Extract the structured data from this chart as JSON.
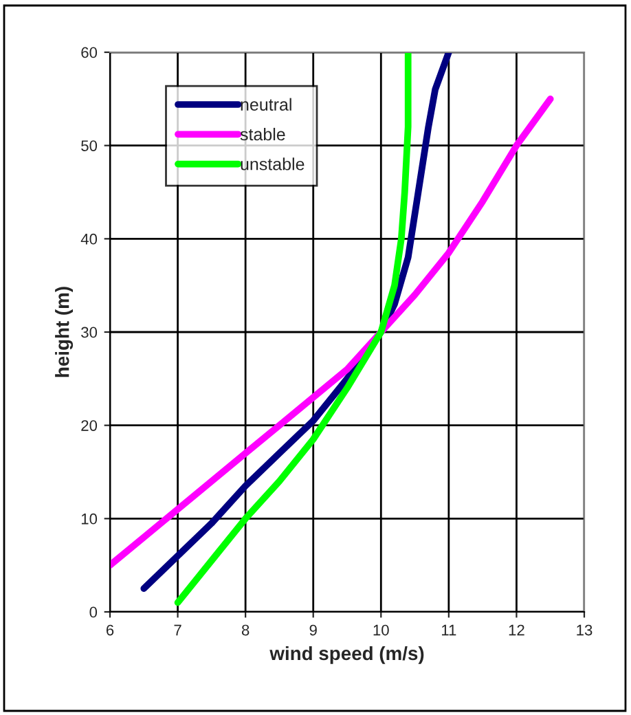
{
  "chart_data": {
    "type": "line",
    "xlabel": "wind speed (m/s)",
    "ylabel": "height (m)",
    "xlim": [
      6,
      13
    ],
    "xticks": [
      6,
      7,
      8,
      9,
      10,
      11,
      12,
      13
    ],
    "ylim": [
      0,
      60
    ],
    "yticks": [
      0,
      10,
      20,
      30,
      40,
      50,
      60
    ],
    "grid": true,
    "legend": "top left",
    "marker": "none",
    "line_style": "solid",
    "series": [
      {
        "name": "neutral",
        "color": "#000080",
        "x": [
          6.5,
          7,
          7.5,
          8,
          8.5,
          9,
          9.5,
          10,
          10.2,
          10.4,
          10.55,
          10.7,
          10.8,
          11
        ],
        "values": [
          2.5,
          6,
          9.5,
          13.5,
          17,
          20.5,
          25,
          30,
          33,
          38,
          45,
          52,
          56,
          60
        ]
      },
      {
        "name": "stable",
        "color": "#ff00ff",
        "x": [
          6,
          6.5,
          7,
          7.5,
          8,
          8.5,
          9,
          9.5,
          10,
          10.5,
          11,
          11.5,
          12,
          12.5
        ],
        "values": [
          5,
          8,
          11,
          14,
          17,
          20,
          23,
          26,
          30,
          34,
          38.5,
          44,
          50,
          55
        ]
      },
      {
        "name": "unstable",
        "color": "#00ff00",
        "x": [
          7,
          7.5,
          8,
          8.5,
          9,
          9.5,
          10,
          10.2,
          10.3,
          10.35,
          10.4,
          10.4
        ],
        "values": [
          1,
          5.5,
          10,
          14,
          18.5,
          24,
          30,
          35,
          40,
          45,
          52,
          60
        ]
      }
    ]
  }
}
